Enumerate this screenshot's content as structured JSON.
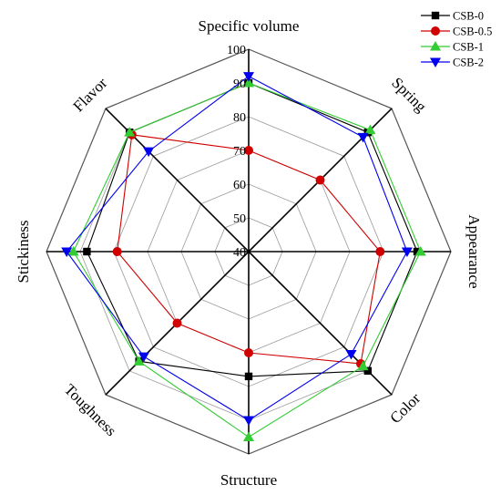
{
  "chart_data": {
    "type": "radar",
    "axes": [
      "Specific volume",
      "Spring",
      "Appearance",
      "Color",
      "Structure",
      "Toughness",
      "Stickiness",
      "Flavor"
    ],
    "rlim": [
      40,
      100
    ],
    "ticks": [
      40,
      50,
      60,
      70,
      80,
      90,
      100
    ],
    "tick_labels": [
      "40",
      "50",
      "60",
      "70",
      "80",
      "90",
      "100"
    ],
    "grid": true,
    "legend_position": "top-right",
    "series": [
      {
        "name": "CSB-0",
        "color": "#000000",
        "marker": "square",
        "values": [
          90,
          90,
          90,
          90,
          77,
          86,
          88,
          90
        ]
      },
      {
        "name": "CSB-0.5",
        "color": "#d00000",
        "marker": "circle",
        "values": [
          70,
          70,
          79,
          87,
          70,
          70,
          79,
          89
        ]
      },
      {
        "name": "CSB-1",
        "color": "#33cc33",
        "marker": "triangle-up",
        "values": [
          90,
          91,
          91,
          88,
          95,
          86,
          92,
          90
        ]
      },
      {
        "name": "CSB-2",
        "color": "#0000ee",
        "marker": "triangle-down",
        "values": [
          92,
          88,
          87,
          83,
          90,
          84,
          94,
          82
        ]
      }
    ]
  }
}
